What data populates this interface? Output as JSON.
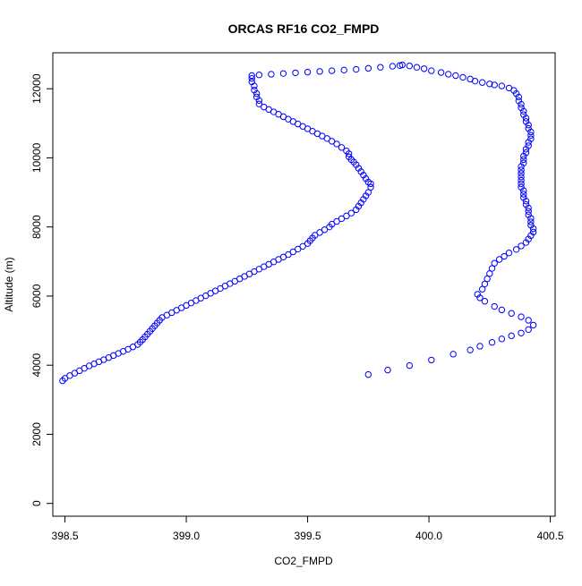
{
  "chart_data": {
    "type": "scatter",
    "title": "ORCAS RF16 CO2_FMPD",
    "xlabel": "CO2_FMPD",
    "ylabel": "Altitude (m)",
    "xlim": [
      398.45,
      400.52
    ],
    "ylim": [
      -370,
      13040
    ],
    "x_ticks": [
      "398.5",
      "399.0",
      "399.5",
      "400.0",
      "400.5"
    ],
    "y_ticks": [
      "0",
      "2000",
      "4000",
      "6000",
      "8000",
      "10000",
      "12000"
    ],
    "grid": false,
    "legend": "none",
    "marker": "open-circle",
    "series": [
      {
        "color": "#0000ff",
        "points": [
          [
            398.49,
            3550
          ],
          [
            398.5,
            3620
          ],
          [
            398.52,
            3700
          ],
          [
            398.54,
            3770
          ],
          [
            398.56,
            3840
          ],
          [
            398.58,
            3910
          ],
          [
            398.6,
            3980
          ],
          [
            398.62,
            4040
          ],
          [
            398.64,
            4100
          ],
          [
            398.66,
            4160
          ],
          [
            398.68,
            4220
          ],
          [
            398.7,
            4280
          ],
          [
            398.72,
            4340
          ],
          [
            398.74,
            4400
          ],
          [
            398.76,
            4460
          ],
          [
            398.78,
            4530
          ],
          [
            398.8,
            4600
          ],
          [
            398.81,
            4670
          ],
          [
            398.82,
            4740
          ],
          [
            398.83,
            4820
          ],
          [
            398.84,
            4900
          ],
          [
            398.85,
            4980
          ],
          [
            398.86,
            5060
          ],
          [
            398.87,
            5140
          ],
          [
            398.88,
            5220
          ],
          [
            398.89,
            5300
          ],
          [
            398.9,
            5380
          ],
          [
            398.92,
            5450
          ],
          [
            398.94,
            5520
          ],
          [
            398.96,
            5590
          ],
          [
            398.98,
            5660
          ],
          [
            399.0,
            5730
          ],
          [
            399.02,
            5800
          ],
          [
            399.04,
            5870
          ],
          [
            399.06,
            5940
          ],
          [
            399.08,
            6010
          ],
          [
            399.1,
            6080
          ],
          [
            399.12,
            6150
          ],
          [
            399.14,
            6220
          ],
          [
            399.16,
            6290
          ],
          [
            399.18,
            6360
          ],
          [
            399.2,
            6430
          ],
          [
            399.22,
            6500
          ],
          [
            399.24,
            6570
          ],
          [
            399.26,
            6640
          ],
          [
            399.28,
            6710
          ],
          [
            399.3,
            6780
          ],
          [
            399.32,
            6850
          ],
          [
            399.34,
            6920
          ],
          [
            399.36,
            6990
          ],
          [
            399.38,
            7060
          ],
          [
            399.4,
            7130
          ],
          [
            399.42,
            7200
          ],
          [
            399.44,
            7280
          ],
          [
            399.46,
            7360
          ],
          [
            399.48,
            7440
          ],
          [
            399.5,
            7520
          ],
          [
            399.51,
            7600
          ],
          [
            399.52,
            7680
          ],
          [
            399.53,
            7760
          ],
          [
            399.55,
            7840
          ],
          [
            399.57,
            7920
          ],
          [
            399.59,
            8000
          ],
          [
            399.6,
            8080
          ],
          [
            399.62,
            8160
          ],
          [
            399.64,
            8240
          ],
          [
            399.66,
            8320
          ],
          [
            399.68,
            8400
          ],
          [
            399.7,
            8500
          ],
          [
            399.71,
            8600
          ],
          [
            399.72,
            8700
          ],
          [
            399.73,
            8800
          ],
          [
            399.74,
            8900
          ],
          [
            399.75,
            9000
          ],
          [
            399.76,
            9150
          ],
          [
            399.76,
            9250
          ],
          [
            399.75,
            9300
          ],
          [
            399.74,
            9400
          ],
          [
            399.73,
            9500
          ],
          [
            399.72,
            9600
          ],
          [
            399.71,
            9700
          ],
          [
            399.7,
            9800
          ],
          [
            399.69,
            9880
          ],
          [
            399.68,
            9950
          ],
          [
            399.67,
            10030
          ],
          [
            399.67,
            10120
          ],
          [
            399.66,
            10200
          ],
          [
            399.64,
            10300
          ],
          [
            399.62,
            10400
          ],
          [
            399.6,
            10480
          ],
          [
            399.58,
            10560
          ],
          [
            399.56,
            10630
          ],
          [
            399.54,
            10700
          ],
          [
            399.52,
            10770
          ],
          [
            399.5,
            10840
          ],
          [
            399.48,
            10910
          ],
          [
            399.46,
            10980
          ],
          [
            399.44,
            11050
          ],
          [
            399.42,
            11120
          ],
          [
            399.4,
            11190
          ],
          [
            399.38,
            11260
          ],
          [
            399.36,
            11330
          ],
          [
            399.34,
            11400
          ],
          [
            399.32,
            11470
          ],
          [
            399.3,
            11560
          ],
          [
            399.3,
            11660
          ],
          [
            399.29,
            11760
          ],
          [
            399.29,
            11860
          ],
          [
            399.28,
            11960
          ],
          [
            399.28,
            12080
          ],
          [
            399.27,
            12200
          ],
          [
            399.27,
            12300
          ],
          [
            399.27,
            12380
          ],
          [
            399.3,
            12400
          ],
          [
            399.35,
            12420
          ],
          [
            399.4,
            12440
          ],
          [
            399.45,
            12460
          ],
          [
            399.5,
            12480
          ],
          [
            399.55,
            12500
          ],
          [
            399.6,
            12520
          ],
          [
            399.65,
            12540
          ],
          [
            399.7,
            12560
          ],
          [
            399.75,
            12590
          ],
          [
            399.8,
            12620
          ],
          [
            399.85,
            12650
          ],
          [
            399.88,
            12670
          ],
          [
            399.89,
            12690
          ],
          [
            399.92,
            12660
          ],
          [
            399.95,
            12620
          ],
          [
            399.98,
            12580
          ],
          [
            400.01,
            12520
          ],
          [
            400.05,
            12470
          ],
          [
            400.08,
            12420
          ],
          [
            400.11,
            12380
          ],
          [
            400.14,
            12330
          ],
          [
            400.17,
            12280
          ],
          [
            400.19,
            12220
          ],
          [
            400.22,
            12180
          ],
          [
            400.25,
            12140
          ],
          [
            400.27,
            12110
          ],
          [
            400.3,
            12080
          ],
          [
            400.33,
            12020
          ],
          [
            400.35,
            11950
          ],
          [
            400.36,
            11860
          ],
          [
            400.37,
            11760
          ],
          [
            400.37,
            11650
          ],
          [
            400.38,
            11550
          ],
          [
            400.38,
            11450
          ],
          [
            400.39,
            11350
          ],
          [
            400.39,
            11250
          ],
          [
            400.4,
            11150
          ],
          [
            400.4,
            11050
          ],
          [
            400.41,
            10950
          ],
          [
            400.41,
            10850
          ],
          [
            400.42,
            10750
          ],
          [
            400.42,
            10650
          ],
          [
            400.42,
            10550
          ],
          [
            400.41,
            10450
          ],
          [
            400.41,
            10350
          ],
          [
            400.4,
            10250
          ],
          [
            400.4,
            10150
          ],
          [
            400.39,
            10050
          ],
          [
            400.39,
            9950
          ],
          [
            400.39,
            9850
          ],
          [
            400.38,
            9750
          ],
          [
            400.38,
            9650
          ],
          [
            400.38,
            9550
          ],
          [
            400.38,
            9450
          ],
          [
            400.38,
            9350
          ],
          [
            400.38,
            9250
          ],
          [
            400.38,
            9150
          ],
          [
            400.39,
            9050
          ],
          [
            400.39,
            8950
          ],
          [
            400.39,
            8850
          ],
          [
            400.4,
            8750
          ],
          [
            400.4,
            8650
          ],
          [
            400.41,
            8550
          ],
          [
            400.41,
            8450
          ],
          [
            400.41,
            8350
          ],
          [
            400.42,
            8250
          ],
          [
            400.42,
            8150
          ],
          [
            400.42,
            8050
          ],
          [
            400.43,
            7950
          ],
          [
            400.43,
            7850
          ],
          [
            400.42,
            7750
          ],
          [
            400.41,
            7650
          ],
          [
            400.4,
            7550
          ],
          [
            400.38,
            7450
          ],
          [
            400.36,
            7350
          ],
          [
            400.33,
            7250
          ],
          [
            400.31,
            7150
          ],
          [
            400.29,
            7060
          ],
          [
            400.27,
            6950
          ],
          [
            400.26,
            6800
          ],
          [
            400.25,
            6650
          ],
          [
            400.24,
            6500
          ],
          [
            400.23,
            6350
          ],
          [
            400.22,
            6200
          ],
          [
            400.2,
            6050
          ],
          [
            400.21,
            5950
          ],
          [
            400.23,
            5850
          ],
          [
            400.27,
            5700
          ],
          [
            400.3,
            5600
          ],
          [
            400.34,
            5500
          ],
          [
            400.38,
            5400
          ],
          [
            400.41,
            5300
          ],
          [
            400.43,
            5160
          ],
          [
            400.41,
            5030
          ],
          [
            400.38,
            4930
          ],
          [
            400.34,
            4850
          ],
          [
            400.3,
            4760
          ],
          [
            400.26,
            4660
          ],
          [
            400.21,
            4550
          ],
          [
            400.17,
            4440
          ],
          [
            400.1,
            4320
          ],
          [
            400.01,
            4150
          ],
          [
            399.92,
            3990
          ],
          [
            399.83,
            3860
          ],
          [
            399.75,
            3730
          ]
        ]
      }
    ]
  }
}
